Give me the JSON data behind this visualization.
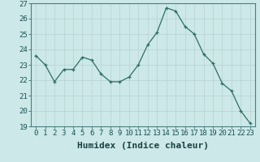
{
  "x": [
    0,
    1,
    2,
    3,
    4,
    5,
    6,
    7,
    8,
    9,
    10,
    11,
    12,
    13,
    14,
    15,
    16,
    17,
    18,
    19,
    20,
    21,
    22,
    23
  ],
  "y": [
    23.6,
    23.0,
    21.9,
    22.7,
    22.7,
    23.5,
    23.3,
    22.4,
    21.9,
    21.9,
    22.2,
    23.0,
    24.3,
    25.1,
    26.7,
    26.5,
    25.5,
    25.0,
    23.7,
    23.1,
    21.8,
    21.3,
    20.0,
    19.2
  ],
  "line_color": "#2d6e63",
  "marker_color": "#2d6e63",
  "bg_color": "#cce8e8",
  "grid_major_color": "#b8d0d0",
  "grid_minor_color": "#d4e8e8",
  "spine_color": "#4a8080",
  "xlabel": "Humidex (Indice chaleur)",
  "xlabel_fontsize": 8,
  "tick_fontsize": 6.5,
  "ylim": [
    19,
    27
  ],
  "yticks": [
    19,
    20,
    21,
    22,
    23,
    24,
    25,
    26,
    27
  ],
  "xticks": [
    0,
    1,
    2,
    3,
    4,
    5,
    6,
    7,
    8,
    9,
    10,
    11,
    12,
    13,
    14,
    15,
    16,
    17,
    18,
    19,
    20,
    21,
    22,
    23
  ]
}
